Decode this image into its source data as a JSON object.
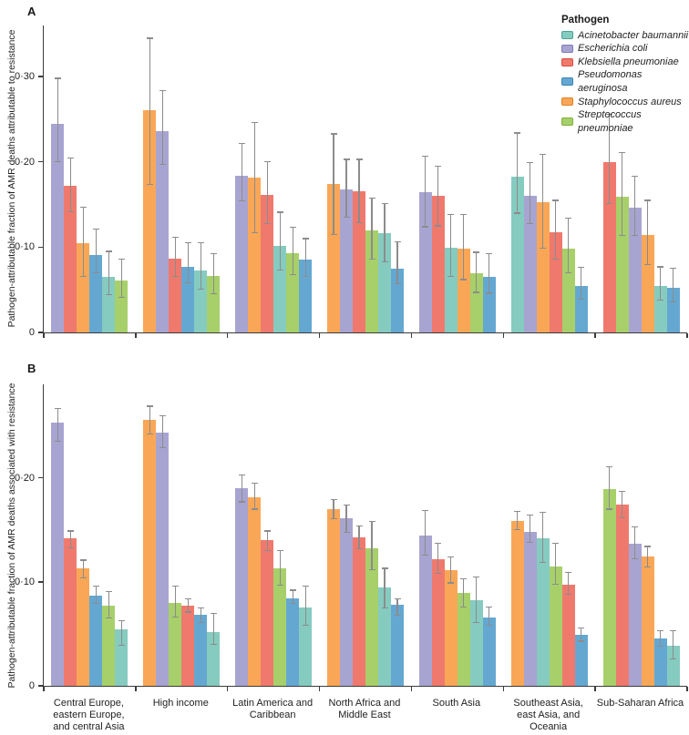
{
  "figure": {
    "panel_a": {
      "label": "A",
      "ylabel": "Pathogen-attributable fraction of AMR deaths attributable to resistance"
    },
    "panel_b": {
      "label": "B",
      "ylabel": "Pathogen-attributable fraction of AMR deaths associated with resistance"
    },
    "legend": {
      "title": "Pathogen",
      "entries": [
        {
          "name": "Acinetobacter baumannii",
          "color": "#85cbc0",
          "border": "#4aa294"
        },
        {
          "name": "Escherichia coli",
          "color": "#a8a4d1",
          "border": "#7f7ab8"
        },
        {
          "name": "Klebsiella pneumoniae",
          "color": "#f0796d",
          "border": "#d94c3f"
        },
        {
          "name": "Pseudomonas aeruginosa",
          "color": "#64a8d2",
          "border": "#3c83b4"
        },
        {
          "name": "Staphylococcus aureus",
          "color": "#f9a757",
          "border": "#e27f1f"
        },
        {
          "name": "Streptococcus pneumoniae",
          "color": "#a7d06a",
          "border": "#7fae3c"
        }
      ]
    },
    "categories": [
      "Central Europe, eastern Europe, and central Asia",
      "High income",
      "Latin America and Caribbean",
      "North Africa and Middle East",
      "South Asia",
      "Southeast Asia, east Asia, and Oceania",
      "Sub-Saharan Africa"
    ]
  },
  "chart_data": [
    {
      "panel": "A",
      "type": "bar",
      "title": "",
      "xlabel": "",
      "ylabel": "Pathogen-attributable fraction of AMR deaths attributable to resistance",
      "ylim": [
        0,
        0.36
      ],
      "yticks": [
        0,
        0.1,
        0.2,
        0.3
      ],
      "ytick_labels": [
        "0",
        "0·10",
        "0·20",
        "0·30"
      ],
      "grid": false,
      "legend_position": "top-right",
      "error_bars": true,
      "categories": [
        "Central Europe, eastern Europe, and central Asia",
        "High income",
        "Latin America and Caribbean",
        "North Africa and Middle East",
        "South Asia",
        "Southeast Asia, east Asia, and Oceania",
        "Sub-Saharan Africa"
      ],
      "groups": [
        {
          "category": "Central Europe, eastern Europe, and central Asia",
          "bars": [
            {
              "pathogen": "Escherichia coli",
              "value": 0.245,
              "lo": 0.2,
              "hi": 0.298
            },
            {
              "pathogen": "Klebsiella pneumoniae",
              "value": 0.172,
              "lo": 0.142,
              "hi": 0.205
            },
            {
              "pathogen": "Staphylococcus aureus",
              "value": 0.105,
              "lo": 0.066,
              "hi": 0.147
            },
            {
              "pathogen": "Pseudomonas aeruginosa",
              "value": 0.091,
              "lo": 0.07,
              "hi": 0.121
            },
            {
              "pathogen": "Acinetobacter baumannii",
              "value": 0.065,
              "lo": 0.044,
              "hi": 0.095
            },
            {
              "pathogen": "Streptococcus pneumoniae",
              "value": 0.061,
              "lo": 0.041,
              "hi": 0.086
            }
          ]
        },
        {
          "category": "High income",
          "bars": [
            {
              "pathogen": "Staphylococcus aureus",
              "value": 0.261,
              "lo": 0.174,
              "hi": 0.345
            },
            {
              "pathogen": "Escherichia coli",
              "value": 0.236,
              "lo": 0.197,
              "hi": 0.284
            },
            {
              "pathogen": "Klebsiella pneumoniae",
              "value": 0.087,
              "lo": 0.066,
              "hi": 0.112
            },
            {
              "pathogen": "Pseudomonas aeruginosa",
              "value": 0.077,
              "lo": 0.058,
              "hi": 0.105
            },
            {
              "pathogen": "Acinetobacter baumannii",
              "value": 0.073,
              "lo": 0.051,
              "hi": 0.105
            },
            {
              "pathogen": "Streptococcus pneumoniae",
              "value": 0.066,
              "lo": 0.045,
              "hi": 0.092
            }
          ]
        },
        {
          "category": "Latin America and Caribbean",
          "bars": [
            {
              "pathogen": "Escherichia coli",
              "value": 0.184,
              "lo": 0.154,
              "hi": 0.222
            },
            {
              "pathogen": "Staphylococcus aureus",
              "value": 0.182,
              "lo": 0.117,
              "hi": 0.246
            },
            {
              "pathogen": "Klebsiella pneumoniae",
              "value": 0.161,
              "lo": 0.128,
              "hi": 0.2
            },
            {
              "pathogen": "Acinetobacter baumannii",
              "value": 0.102,
              "lo": 0.073,
              "hi": 0.141
            },
            {
              "pathogen": "Streptococcus pneumoniae",
              "value": 0.093,
              "lo": 0.068,
              "hi": 0.123
            },
            {
              "pathogen": "Pseudomonas aeruginosa",
              "value": 0.085,
              "lo": 0.066,
              "hi": 0.11
            }
          ]
        },
        {
          "category": "North Africa and Middle East",
          "bars": [
            {
              "pathogen": "Staphylococcus aureus",
              "value": 0.174,
              "lo": 0.115,
              "hi": 0.233
            },
            {
              "pathogen": "Escherichia coli",
              "value": 0.168,
              "lo": 0.135,
              "hi": 0.203
            },
            {
              "pathogen": "Klebsiella pneumoniae",
              "value": 0.166,
              "lo": 0.129,
              "hi": 0.203
            },
            {
              "pathogen": "Streptococcus pneumoniae",
              "value": 0.12,
              "lo": 0.086,
              "hi": 0.158
            },
            {
              "pathogen": "Acinetobacter baumannii",
              "value": 0.116,
              "lo": 0.083,
              "hi": 0.151
            },
            {
              "pathogen": "Pseudomonas aeruginosa",
              "value": 0.075,
              "lo": 0.057,
              "hi": 0.106
            }
          ]
        },
        {
          "category": "South Asia",
          "bars": [
            {
              "pathogen": "Escherichia coli",
              "value": 0.164,
              "lo": 0.124,
              "hi": 0.207
            },
            {
              "pathogen": "Klebsiella pneumoniae",
              "value": 0.16,
              "lo": 0.125,
              "hi": 0.195
            },
            {
              "pathogen": "Acinetobacter baumannii",
              "value": 0.099,
              "lo": 0.066,
              "hi": 0.138
            },
            {
              "pathogen": "Staphylococcus aureus",
              "value": 0.098,
              "lo": 0.062,
              "hi": 0.138
            },
            {
              "pathogen": "Streptococcus pneumoniae",
              "value": 0.069,
              "lo": 0.047,
              "hi": 0.094
            },
            {
              "pathogen": "Pseudomonas aeruginosa",
              "value": 0.065,
              "lo": 0.046,
              "hi": 0.092
            }
          ]
        },
        {
          "category": "Southeast Asia, east Asia, and Oceania",
          "bars": [
            {
              "pathogen": "Acinetobacter baumannii",
              "value": 0.183,
              "lo": 0.14,
              "hi": 0.234
            },
            {
              "pathogen": "Escherichia coli",
              "value": 0.16,
              "lo": 0.128,
              "hi": 0.199
            },
            {
              "pathogen": "Staphylococcus aureus",
              "value": 0.153,
              "lo": 0.099,
              "hi": 0.209
            },
            {
              "pathogen": "Klebsiella pneumoniae",
              "value": 0.118,
              "lo": 0.086,
              "hi": 0.155
            },
            {
              "pathogen": "Streptococcus pneumoniae",
              "value": 0.098,
              "lo": 0.07,
              "hi": 0.134
            },
            {
              "pathogen": "Pseudomonas aeruginosa",
              "value": 0.054,
              "lo": 0.039,
              "hi": 0.076
            }
          ]
        },
        {
          "category": "Sub-Saharan Africa",
          "bars": [
            {
              "pathogen": "Klebsiella pneumoniae",
              "value": 0.2,
              "lo": 0.151,
              "hi": 0.256
            },
            {
              "pathogen": "Streptococcus pneumoniae",
              "value": 0.159,
              "lo": 0.114,
              "hi": 0.211
            },
            {
              "pathogen": "Escherichia coli",
              "value": 0.146,
              "lo": 0.114,
              "hi": 0.183
            },
            {
              "pathogen": "Staphylococcus aureus",
              "value": 0.114,
              "lo": 0.08,
              "hi": 0.155
            },
            {
              "pathogen": "Acinetobacter baumannii",
              "value": 0.054,
              "lo": 0.038,
              "hi": 0.077
            },
            {
              "pathogen": "Pseudomonas aeruginosa",
              "value": 0.052,
              "lo": 0.036,
              "hi": 0.075
            }
          ]
        }
      ]
    },
    {
      "panel": "B",
      "type": "bar",
      "title": "",
      "xlabel": "",
      "ylabel": "Pathogen-attributable fraction of AMR deaths associated with resistance",
      "ylim": [
        0,
        0.29
      ],
      "yticks": [
        0,
        0.1,
        0.2
      ],
      "ytick_labels": [
        "0",
        "0·10",
        "0·20"
      ],
      "grid": false,
      "error_bars": true,
      "categories": [
        "Central Europe, eastern Europe, and central Asia",
        "High income",
        "Latin America and Caribbean",
        "North Africa and Middle East",
        "South Asia",
        "Southeast Asia, east Asia, and Oceania",
        "Sub-Saharan Africa"
      ],
      "groups": [
        {
          "category": "Central Europe, eastern Europe, and central Asia",
          "bars": [
            {
              "pathogen": "Escherichia coli",
              "value": 0.253,
              "lo": 0.235,
              "hi": 0.267
            },
            {
              "pathogen": "Klebsiella pneumoniae",
              "value": 0.142,
              "lo": 0.133,
              "hi": 0.149
            },
            {
              "pathogen": "Staphylococcus aureus",
              "value": 0.113,
              "lo": 0.104,
              "hi": 0.121
            },
            {
              "pathogen": "Pseudomonas aeruginosa",
              "value": 0.087,
              "lo": 0.079,
              "hi": 0.096
            },
            {
              "pathogen": "Streptococcus pneumoniae",
              "value": 0.077,
              "lo": 0.065,
              "hi": 0.091
            },
            {
              "pathogen": "Acinetobacter baumannii",
              "value": 0.054,
              "lo": 0.039,
              "hi": 0.063
            }
          ]
        },
        {
          "category": "High income",
          "bars": [
            {
              "pathogen": "Staphylococcus aureus",
              "value": 0.256,
              "lo": 0.242,
              "hi": 0.269
            },
            {
              "pathogen": "Escherichia coli",
              "value": 0.244,
              "lo": 0.229,
              "hi": 0.26
            },
            {
              "pathogen": "Streptococcus pneumoniae",
              "value": 0.08,
              "lo": 0.066,
              "hi": 0.096
            },
            {
              "pathogen": "Klebsiella pneumoniae",
              "value": 0.077,
              "lo": 0.071,
              "hi": 0.084
            },
            {
              "pathogen": "Pseudomonas aeruginosa",
              "value": 0.068,
              "lo": 0.061,
              "hi": 0.075
            },
            {
              "pathogen": "Acinetobacter baumannii",
              "value": 0.052,
              "lo": 0.04,
              "hi": 0.07
            }
          ]
        },
        {
          "category": "Latin America and Caribbean",
          "bars": [
            {
              "pathogen": "Escherichia coli",
              "value": 0.19,
              "lo": 0.177,
              "hi": 0.203
            },
            {
              "pathogen": "Staphylococcus aureus",
              "value": 0.181,
              "lo": 0.17,
              "hi": 0.195
            },
            {
              "pathogen": "Klebsiella pneumoniae",
              "value": 0.14,
              "lo": 0.13,
              "hi": 0.149
            },
            {
              "pathogen": "Streptococcus pneumoniae",
              "value": 0.113,
              "lo": 0.097,
              "hi": 0.13
            },
            {
              "pathogen": "Pseudomonas aeruginosa",
              "value": 0.084,
              "lo": 0.079,
              "hi": 0.092
            },
            {
              "pathogen": "Acinetobacter baumannii",
              "value": 0.075,
              "lo": 0.058,
              "hi": 0.096
            }
          ]
        },
        {
          "category": "North Africa and Middle East",
          "bars": [
            {
              "pathogen": "Staphylococcus aureus",
              "value": 0.17,
              "lo": 0.161,
              "hi": 0.179
            },
            {
              "pathogen": "Escherichia coli",
              "value": 0.161,
              "lo": 0.148,
              "hi": 0.174
            },
            {
              "pathogen": "Klebsiella pneumoniae",
              "value": 0.143,
              "lo": 0.132,
              "hi": 0.154
            },
            {
              "pathogen": "Streptococcus pneumoniae",
              "value": 0.132,
              "lo": 0.112,
              "hi": 0.158
            },
            {
              "pathogen": "Acinetobacter baumannii",
              "value": 0.095,
              "lo": 0.075,
              "hi": 0.113
            },
            {
              "pathogen": "Pseudomonas aeruginosa",
              "value": 0.078,
              "lo": 0.068,
              "hi": 0.084
            }
          ]
        },
        {
          "category": "South Asia",
          "bars": [
            {
              "pathogen": "Escherichia coli",
              "value": 0.145,
              "lo": 0.126,
              "hi": 0.169
            },
            {
              "pathogen": "Klebsiella pneumoniae",
              "value": 0.122,
              "lo": 0.108,
              "hi": 0.137
            },
            {
              "pathogen": "Staphylococcus aureus",
              "value": 0.111,
              "lo": 0.099,
              "hi": 0.124
            },
            {
              "pathogen": "Streptococcus pneumoniae",
              "value": 0.089,
              "lo": 0.076,
              "hi": 0.103
            },
            {
              "pathogen": "Acinetobacter baumannii",
              "value": 0.082,
              "lo": 0.061,
              "hi": 0.105
            },
            {
              "pathogen": "Pseudomonas aeruginosa",
              "value": 0.066,
              "lo": 0.058,
              "hi": 0.076
            }
          ]
        },
        {
          "category": "Southeast Asia, east Asia, and Oceania",
          "bars": [
            {
              "pathogen": "Staphylococcus aureus",
              "value": 0.159,
              "lo": 0.15,
              "hi": 0.168
            },
            {
              "pathogen": "Escherichia coli",
              "value": 0.148,
              "lo": 0.138,
              "hi": 0.164
            },
            {
              "pathogen": "Acinetobacter baumannii",
              "value": 0.142,
              "lo": 0.119,
              "hi": 0.167
            },
            {
              "pathogen": "Streptococcus pneumoniae",
              "value": 0.115,
              "lo": 0.098,
              "hi": 0.137
            },
            {
              "pathogen": "Klebsiella pneumoniae",
              "value": 0.097,
              "lo": 0.088,
              "hi": 0.109
            },
            {
              "pathogen": "Pseudomonas aeruginosa",
              "value": 0.049,
              "lo": 0.043,
              "hi": 0.056
            }
          ]
        },
        {
          "category": "Sub-Saharan Africa",
          "bars": [
            {
              "pathogen": "Streptococcus pneumoniae",
              "value": 0.189,
              "lo": 0.17,
              "hi": 0.211
            },
            {
              "pathogen": "Klebsiella pneumoniae",
              "value": 0.174,
              "lo": 0.162,
              "hi": 0.187
            },
            {
              "pathogen": "Escherichia coli",
              "value": 0.137,
              "lo": 0.122,
              "hi": 0.153
            },
            {
              "pathogen": "Staphylococcus aureus",
              "value": 0.124,
              "lo": 0.114,
              "hi": 0.134
            },
            {
              "pathogen": "Pseudomonas aeruginosa",
              "value": 0.046,
              "lo": 0.038,
              "hi": 0.053
            },
            {
              "pathogen": "Acinetobacter baumannii",
              "value": 0.039,
              "lo": 0.026,
              "hi": 0.053
            }
          ]
        }
      ]
    }
  ]
}
